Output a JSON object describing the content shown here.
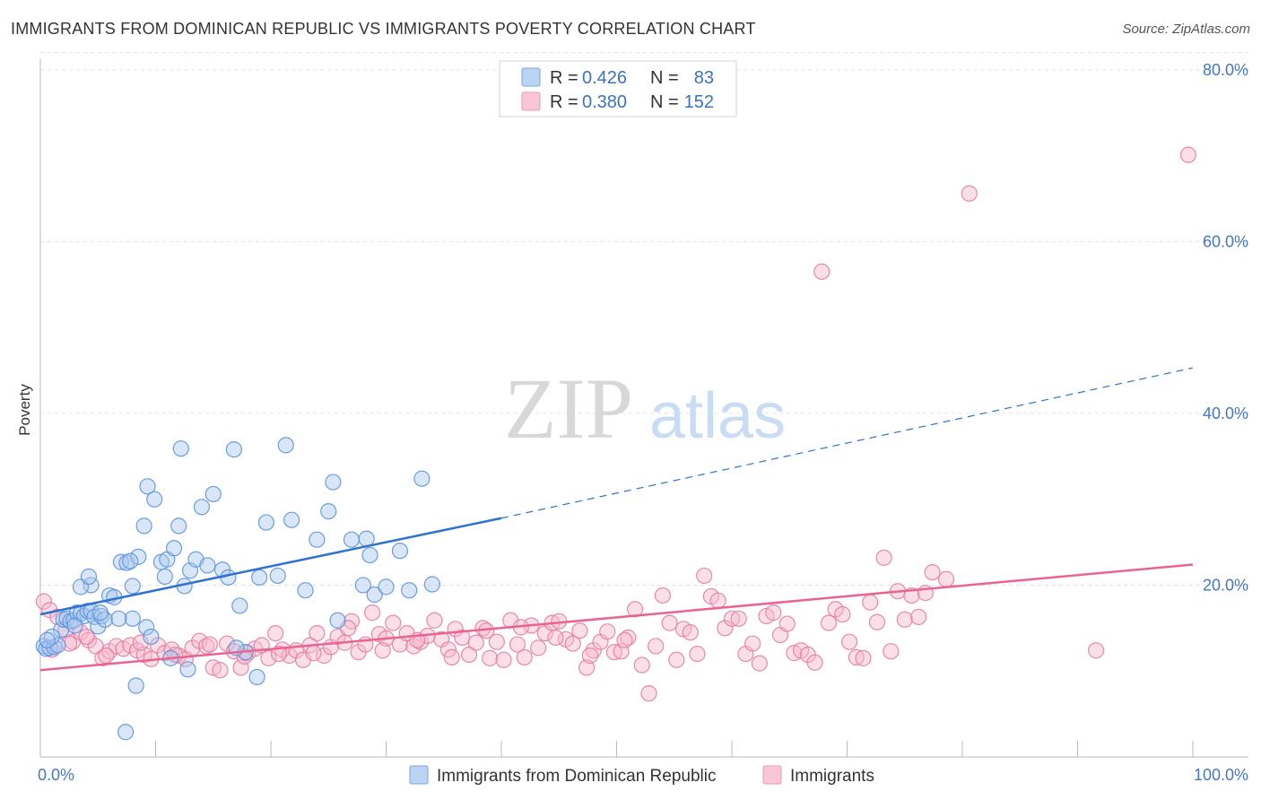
{
  "header": {
    "title": "IMMIGRANTS FROM DOMINICAN REPUBLIC VS IMMIGRANTS POVERTY CORRELATION CHART",
    "source": "Source: ZipAtlas.com"
  },
  "watermark": {
    "zip": "ZIP",
    "atlas": "atlas"
  },
  "legend": {
    "r_label": "R =",
    "n_label": "N =",
    "entries": [
      {
        "r": "0.426",
        "n": "83",
        "color": "#8ab4e8"
      },
      {
        "r": "0.380",
        "n": "152",
        "color": "#f2a0b8"
      }
    ]
  },
  "bottom_legend": {
    "items": [
      {
        "label": "Immigrants from Dominican Republic",
        "color": "#8ab4e8"
      },
      {
        "label": "Immigrants",
        "color": "#f2a0b8"
      }
    ]
  },
  "chart_data": {
    "type": "scatter",
    "ylabel": "Poverty",
    "xlim": [
      0,
      100
    ],
    "ylim": [
      0,
      82
    ],
    "x_tick_labels": [
      "0.0%",
      "100.0%"
    ],
    "y_ticks": [
      20,
      40,
      60,
      80
    ],
    "y_tick_labels": [
      "20.0%",
      "40.0%",
      "60.0%",
      "80.0%"
    ],
    "grid": true,
    "series": [
      {
        "name": "Immigrants from Dominican Republic",
        "color": "#5b93dc",
        "fill": "#aac8f0",
        "trend": {
          "x0": 0,
          "y0": 16.6,
          "x1": 40,
          "y1": 27.8,
          "dashed_to_x": 100,
          "dashed_to_y": 45.3,
          "color": "#2f72d0"
        },
        "points": [
          [
            0.3,
            12.9
          ],
          [
            0.5,
            12.6
          ],
          [
            0.8,
            12.7
          ],
          [
            1.2,
            12.8
          ],
          [
            1.5,
            13.0
          ],
          [
            1.8,
            14.8
          ],
          [
            2.0,
            16.0
          ],
          [
            2.3,
            16.1
          ],
          [
            2.6,
            15.8
          ],
          [
            2.9,
            15.9
          ],
          [
            3.2,
            16.8
          ],
          [
            3.5,
            16.7
          ],
          [
            3.8,
            16.4
          ],
          [
            4.1,
            17.0
          ],
          [
            4.4,
            17.0
          ],
          [
            4.7,
            16.3
          ],
          [
            5.0,
            15.2
          ],
          [
            5.3,
            16.4
          ],
          [
            5.6,
            16.0
          ],
          [
            6.0,
            18.8
          ],
          [
            4.4,
            20.0
          ],
          [
            3.5,
            19.8
          ],
          [
            4.2,
            21.0
          ],
          [
            6.4,
            18.6
          ],
          [
            7.0,
            22.7
          ],
          [
            7.5,
            22.6
          ],
          [
            8.0,
            19.9
          ],
          [
            8.5,
            23.3
          ],
          [
            9.0,
            26.9
          ],
          [
            9.3,
            31.5
          ],
          [
            9.9,
            30.0
          ],
          [
            10.5,
            22.7
          ],
          [
            11.0,
            23.0
          ],
          [
            11.6,
            24.3
          ],
          [
            12.0,
            26.9
          ],
          [
            12.5,
            19.9
          ],
          [
            13.0,
            21.7
          ],
          [
            13.5,
            23.0
          ],
          [
            14.0,
            29.1
          ],
          [
            14.5,
            22.3
          ],
          [
            15.0,
            30.6
          ],
          [
            15.8,
            21.8
          ],
          [
            16.3,
            20.9
          ],
          [
            16.8,
            35.8
          ],
          [
            17.3,
            17.6
          ],
          [
            17.8,
            12.2
          ],
          [
            19.0,
            20.9
          ],
          [
            19.6,
            27.3
          ],
          [
            20.6,
            21.1
          ],
          [
            21.3,
            36.3
          ],
          [
            21.8,
            27.6
          ],
          [
            23.0,
            19.4
          ],
          [
            24.0,
            25.3
          ],
          [
            25.0,
            28.6
          ],
          [
            25.4,
            32.0
          ],
          [
            25.8,
            15.9
          ],
          [
            27.0,
            25.3
          ],
          [
            28.0,
            20.0
          ],
          [
            28.3,
            25.4
          ],
          [
            28.6,
            23.5
          ],
          [
            29.0,
            18.9
          ],
          [
            30.0,
            19.8
          ],
          [
            31.2,
            24.0
          ],
          [
            32.0,
            19.4
          ],
          [
            33.1,
            32.4
          ],
          [
            34.0,
            20.1
          ],
          [
            12.2,
            35.9
          ],
          [
            9.2,
            15.1
          ],
          [
            9.6,
            14.0
          ],
          [
            8.0,
            16.1
          ],
          [
            8.3,
            8.3
          ],
          [
            7.4,
            2.9
          ],
          [
            12.8,
            10.2
          ],
          [
            18.8,
            9.3
          ],
          [
            11.3,
            11.5
          ],
          [
            5.2,
            16.8
          ],
          [
            6.8,
            16.1
          ],
          [
            3.0,
            15.3
          ],
          [
            1.0,
            14.0
          ],
          [
            0.6,
            13.6
          ],
          [
            7.8,
            22.8
          ],
          [
            10.8,
            21.0
          ],
          [
            17.0,
            12.7
          ]
        ]
      },
      {
        "name": "Immigrants",
        "color": "#e87da0",
        "fill": "#f6b8cb",
        "trend": {
          "x0": 0,
          "y0": 10.1,
          "x1": 100,
          "y1": 22.4,
          "color": "#e86593"
        },
        "points": [
          [
            0.3,
            18.1
          ],
          [
            0.8,
            17.1
          ],
          [
            1.5,
            16.3
          ],
          [
            2.2,
            14.8
          ],
          [
            2.8,
            13.4
          ],
          [
            3.5,
            14.5
          ],
          [
            4.2,
            13.6
          ],
          [
            4.8,
            12.9
          ],
          [
            5.4,
            11.5
          ],
          [
            6.0,
            12.3
          ],
          [
            6.6,
            12.9
          ],
          [
            7.2,
            12.6
          ],
          [
            7.8,
            13.0
          ],
          [
            8.4,
            12.4
          ],
          [
            9.0,
            11.9
          ],
          [
            9.6,
            11.4
          ],
          [
            10.2,
            13.0
          ],
          [
            10.8,
            12.1
          ],
          [
            11.4,
            12.5
          ],
          [
            12.0,
            11.8
          ],
          [
            12.6,
            11.4
          ],
          [
            13.2,
            12.7
          ],
          [
            13.8,
            13.5
          ],
          [
            14.4,
            12.9
          ],
          [
            15.0,
            10.4
          ],
          [
            15.6,
            10.1
          ],
          [
            16.2,
            13.2
          ],
          [
            16.8,
            12.3
          ],
          [
            17.4,
            10.4
          ],
          [
            18.0,
            12.1
          ],
          [
            18.6,
            12.6
          ],
          [
            19.2,
            13.0
          ],
          [
            19.8,
            11.5
          ],
          [
            20.4,
            14.4
          ],
          [
            21.0,
            12.5
          ],
          [
            21.6,
            11.8
          ],
          [
            22.2,
            12.4
          ],
          [
            22.8,
            11.3
          ],
          [
            23.4,
            13.0
          ],
          [
            24.0,
            14.4
          ],
          [
            24.6,
            11.8
          ],
          [
            25.2,
            12.8
          ],
          [
            25.8,
            14.0
          ],
          [
            26.4,
            13.3
          ],
          [
            27.0,
            15.8
          ],
          [
            27.6,
            12.2
          ],
          [
            28.2,
            13.1
          ],
          [
            28.8,
            16.8
          ],
          [
            29.4,
            14.3
          ],
          [
            30.0,
            13.8
          ],
          [
            30.6,
            15.6
          ],
          [
            31.2,
            13.1
          ],
          [
            31.8,
            14.4
          ],
          [
            32.4,
            12.9
          ],
          [
            33.0,
            13.4
          ],
          [
            33.6,
            14.1
          ],
          [
            34.2,
            15.9
          ],
          [
            34.8,
            13.7
          ],
          [
            35.4,
            12.5
          ],
          [
            36.0,
            14.9
          ],
          [
            36.6,
            13.9
          ],
          [
            37.2,
            11.9
          ],
          [
            37.8,
            13.3
          ],
          [
            38.4,
            15.0
          ],
          [
            39.0,
            11.5
          ],
          [
            39.6,
            13.4
          ],
          [
            40.2,
            11.3
          ],
          [
            40.8,
            15.9
          ],
          [
            41.4,
            13.1
          ],
          [
            42.0,
            11.6
          ],
          [
            42.6,
            15.3
          ],
          [
            43.2,
            12.7
          ],
          [
            43.8,
            14.4
          ],
          [
            44.4,
            15.6
          ],
          [
            45.0,
            15.8
          ],
          [
            45.6,
            13.7
          ],
          [
            46.2,
            13.2
          ],
          [
            46.8,
            14.7
          ],
          [
            47.4,
            10.4
          ],
          [
            48.0,
            12.4
          ],
          [
            48.6,
            13.4
          ],
          [
            49.2,
            14.6
          ],
          [
            49.8,
            12.2
          ],
          [
            50.4,
            12.3
          ],
          [
            51.0,
            13.9
          ],
          [
            51.6,
            17.2
          ],
          [
            52.2,
            10.7
          ],
          [
            52.8,
            7.4
          ],
          [
            53.4,
            12.9
          ],
          [
            54.0,
            18.8
          ],
          [
            54.6,
            15.6
          ],
          [
            55.2,
            11.3
          ],
          [
            55.8,
            14.9
          ],
          [
            56.4,
            14.5
          ],
          [
            57.0,
            12.0
          ],
          [
            57.6,
            21.1
          ],
          [
            58.2,
            18.7
          ],
          [
            58.8,
            18.2
          ],
          [
            59.4,
            15.0
          ],
          [
            60.0,
            16.1
          ],
          [
            60.6,
            16.1
          ],
          [
            61.2,
            12.0
          ],
          [
            61.8,
            13.2
          ],
          [
            62.4,
            10.9
          ],
          [
            63.0,
            16.4
          ],
          [
            63.6,
            16.8
          ],
          [
            64.2,
            14.2
          ],
          [
            64.8,
            15.5
          ],
          [
            65.4,
            12.1
          ],
          [
            66.0,
            12.4
          ],
          [
            66.6,
            11.9
          ],
          [
            67.2,
            11.0
          ],
          [
            67.8,
            56.5
          ],
          [
            68.4,
            15.6
          ],
          [
            69.0,
            17.2
          ],
          [
            69.6,
            16.6
          ],
          [
            70.2,
            13.4
          ],
          [
            70.8,
            11.6
          ],
          [
            71.4,
            11.5
          ],
          [
            72.0,
            18.0
          ],
          [
            72.6,
            15.7
          ],
          [
            73.2,
            23.2
          ],
          [
            73.8,
            12.3
          ],
          [
            74.4,
            19.3
          ],
          [
            75.0,
            16.0
          ],
          [
            75.6,
            18.8
          ],
          [
            76.2,
            16.3
          ],
          [
            76.8,
            19.1
          ],
          [
            77.4,
            21.5
          ],
          [
            78.6,
            20.7
          ],
          [
            80.6,
            65.6
          ],
          [
            91.6,
            12.4
          ],
          [
            99.6,
            70.1
          ],
          [
            1.0,
            12.5
          ],
          [
            2.5,
            13.2
          ],
          [
            4.0,
            14.0
          ],
          [
            5.7,
            11.8
          ],
          [
            8.7,
            13.3
          ],
          [
            11.7,
            11.9
          ],
          [
            14.7,
            13.1
          ],
          [
            17.7,
            11.7
          ],
          [
            20.7,
            12.0
          ],
          [
            23.7,
            12.1
          ],
          [
            26.7,
            15.0
          ],
          [
            29.7,
            12.4
          ],
          [
            32.7,
            13.6
          ],
          [
            35.7,
            11.6
          ],
          [
            38.7,
            14.7
          ],
          [
            41.7,
            15.1
          ],
          [
            44.7,
            13.9
          ],
          [
            47.7,
            11.8
          ],
          [
            50.7,
            13.6
          ]
        ]
      }
    ]
  }
}
